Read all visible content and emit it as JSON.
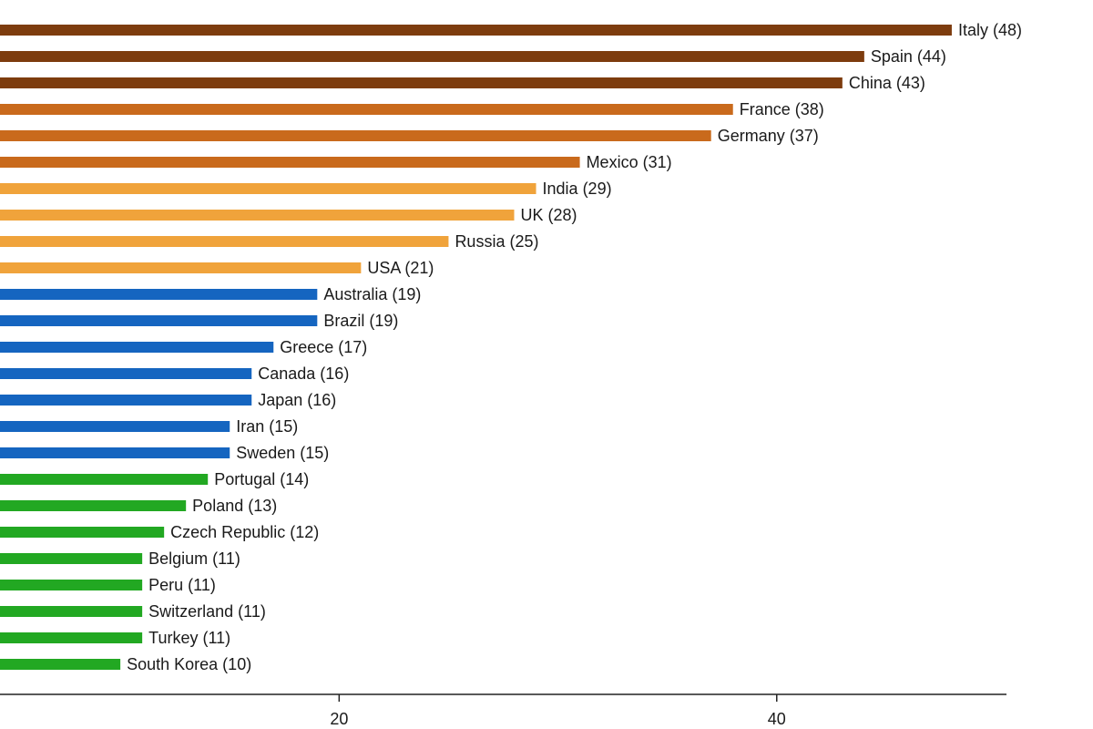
{
  "chart_data": {
    "type": "bar",
    "orientation": "horizontal",
    "title": "",
    "xlabel": "",
    "ylabel": "",
    "xlim": [
      4.5,
      50.5
    ],
    "x_ticks": [
      20,
      40
    ],
    "grid": false,
    "legend": "none",
    "categories": [
      "Italy",
      "Spain",
      "China",
      "France",
      "Germany",
      "Mexico",
      "India",
      "UK",
      "Russia",
      "USA",
      "Australia",
      "Brazil",
      "Greece",
      "Canada",
      "Japan",
      "Iran",
      "Sweden",
      "Portugal",
      "Poland",
      "Czech Republic",
      "Belgium",
      "Peru",
      "Switzerland",
      "Turkey",
      "South Korea"
    ],
    "values": [
      48,
      44,
      43,
      38,
      37,
      31,
      29,
      28,
      25,
      21,
      19,
      19,
      17,
      16,
      16,
      15,
      15,
      14,
      13,
      12,
      11,
      11,
      11,
      11,
      10
    ],
    "data_labels": [
      "Italy (48)",
      "Spain (44)",
      "China (43)",
      "France (38)",
      "Germany (37)",
      "Mexico (31)",
      "India (29)",
      "UK (28)",
      "Russia (25)",
      "USA (21)",
      "Australia (19)",
      "Brazil (19)",
      "Greece (17)",
      "Canada (16)",
      "Japan (16)",
      "Iran (15)",
      "Sweden (15)",
      "Portugal (14)",
      "Poland (13)",
      "Czech Republic (12)",
      "Belgium (11)",
      "Peru (11)",
      "Switzerland (11)",
      "Turkey (11)",
      "South Korea (10)"
    ],
    "bar_colors": [
      "#7d3c0e",
      "#7d3c0e",
      "#7d3c0e",
      "#c96a1c",
      "#c96a1c",
      "#c96a1c",
      "#f0a33b",
      "#f0a33b",
      "#f0a33b",
      "#f0a33b",
      "#1565c0",
      "#1565c0",
      "#1565c0",
      "#1565c0",
      "#1565c0",
      "#1565c0",
      "#1565c0",
      "#22a822",
      "#22a822",
      "#22a822",
      "#22a822",
      "#22a822",
      "#22a822",
      "#22a822",
      "#22a822"
    ]
  }
}
